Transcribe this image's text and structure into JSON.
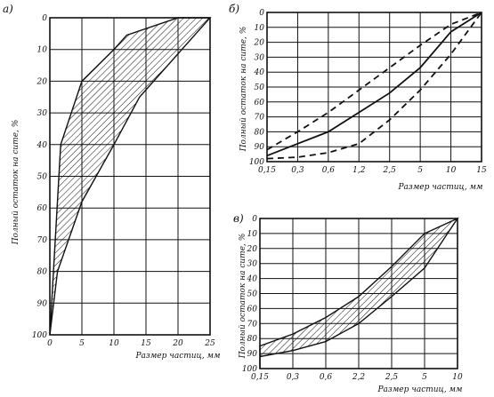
{
  "chart_data": [
    {
      "id": "a",
      "panel_label": "а)",
      "type": "area",
      "xlabel": "Размер частиц, мм",
      "ylabel": "Полный остаток на сите, %",
      "x_ticks": [
        "0",
        "5",
        "10",
        "15",
        "20",
        "25"
      ],
      "y_ticks": [
        "0",
        "10",
        "20",
        "30",
        "40",
        "50",
        "60",
        "70",
        "80",
        "90",
        "100"
      ],
      "xlim": [
        0,
        25
      ],
      "ylim": [
        0,
        100
      ],
      "y_inverted": true,
      "grid": true,
      "band": {
        "upper": [
          [
            0,
            100
          ],
          [
            1.7,
            40
          ],
          [
            5,
            20
          ],
          [
            10,
            10
          ],
          [
            12,
            5.5
          ],
          [
            20,
            0
          ]
        ],
        "lower": [
          [
            0,
            100
          ],
          [
            1.2,
            80
          ],
          [
            5,
            58
          ],
          [
            10,
            40
          ],
          [
            14,
            25
          ],
          [
            25,
            0
          ]
        ]
      }
    },
    {
      "id": "b",
      "panel_label": "б)",
      "type": "line",
      "xlabel": "Размер частиц, мм",
      "ylabel": "Полный остаток на сите, %",
      "x_ticks": [
        "0,15",
        "0,3",
        "0,6",
        "1,2",
        "2,5",
        "5",
        "10",
        "15"
      ],
      "y_ticks": [
        "0",
        "10",
        "20",
        "30",
        "40",
        "50",
        "60",
        "70",
        "80",
        "90",
        "100"
      ],
      "ylim": [
        0,
        100
      ],
      "y_inverted": true,
      "grid": true,
      "series": [
        {
          "style": "dashed",
          "points": [
            [
              "0,15",
              92
            ],
            [
              "0,3",
              80
            ],
            [
              "0,6",
              67
            ],
            [
              "1,2",
              52
            ],
            [
              "2,5",
              37
            ],
            [
              "5",
              22
            ],
            [
              "10",
              8
            ],
            [
              "15",
              0
            ]
          ]
        },
        {
          "style": "solid",
          "points": [
            [
              "0,15",
              96
            ],
            [
              "0,3",
              88
            ],
            [
              "0,6",
              80
            ],
            [
              "1,2",
              67
            ],
            [
              "2,5",
              54
            ],
            [
              "5",
              37
            ],
            [
              "10",
              13
            ],
            [
              "15",
              0
            ]
          ]
        },
        {
          "style": "dashed",
          "points": [
            [
              "0,15",
              98
            ],
            [
              "0,3",
              97
            ],
            [
              "0,6",
              94
            ],
            [
              "1,2",
              88
            ],
            [
              "2,5",
              72
            ],
            [
              "5",
              52
            ],
            [
              "10",
              28
            ],
            [
              "15",
              0
            ]
          ]
        }
      ]
    },
    {
      "id": "c",
      "panel_label": "в)",
      "type": "area",
      "xlabel": "Размер частиц, мм",
      "ylabel": "Полный остаток на сите, %",
      "x_ticks": [
        "0,15",
        "0,3",
        "0,6",
        "2,2",
        "2,5",
        "5",
        "10"
      ],
      "y_ticks": [
        "0",
        "10",
        "20",
        "30",
        "40",
        "50",
        "60",
        "70",
        "80",
        "90",
        "100"
      ],
      "ylim": [
        0,
        100
      ],
      "y_inverted": true,
      "grid": true,
      "band": {
        "upper": [
          [
            "0,15",
            85
          ],
          [
            "0,3",
            77
          ],
          [
            "0,6",
            66
          ],
          [
            "2,2",
            52
          ],
          [
            "2,5",
            32
          ],
          [
            "5",
            10
          ],
          [
            "10",
            0
          ]
        ],
        "lower": [
          [
            "0,15",
            92
          ],
          [
            "0,3",
            88
          ],
          [
            "0,6",
            82
          ],
          [
            "2,2",
            70
          ],
          [
            "2,5",
            52
          ],
          [
            "5",
            33
          ],
          [
            "10",
            0
          ]
        ]
      },
      "band_end_point": [
        "0,15",
        100
      ]
    }
  ]
}
